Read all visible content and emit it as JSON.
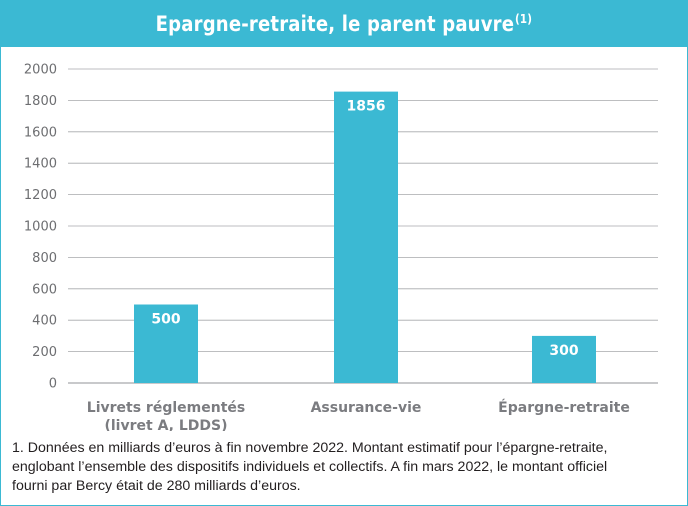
{
  "header": {
    "title": "Epargne-retraite, le parent pauvre",
    "title_note_ref": "(1)"
  },
  "chart_data": {
    "type": "bar",
    "title": "Epargne-retraite, le parent pauvre",
    "categories": [
      [
        "Livrets réglementés",
        "(livret A, LDDS)"
      ],
      [
        "Assurance-vie"
      ],
      [
        "Épargne-retraite"
      ]
    ],
    "values": [
      500,
      1856,
      300
    ],
    "data_labels": [
      "500",
      "1856",
      "300"
    ],
    "ylim": [
      0,
      2000
    ],
    "yticks": [
      0,
      200,
      400,
      600,
      800,
      1000,
      1200,
      1400,
      1600,
      1800,
      2000
    ],
    "grid": true,
    "bar_color": "#3bb9d3",
    "grid_color": "#a7a9ac"
  },
  "footnote": {
    "lines": [
      "1. Données en milliards d’euros à fin novembre 2022. Montant estimatif pour l’épargne-retraite,",
      "englobant l’ensemble des dispositifs individuels et collectifs. A fin mars 2022, le montant officiel",
      "fourni par Bercy était de 280 milliards d’euros."
    ]
  },
  "colors": {
    "accent": "#3bb9d3",
    "text": "#231f20",
    "axis_text": "#6d6e71"
  }
}
